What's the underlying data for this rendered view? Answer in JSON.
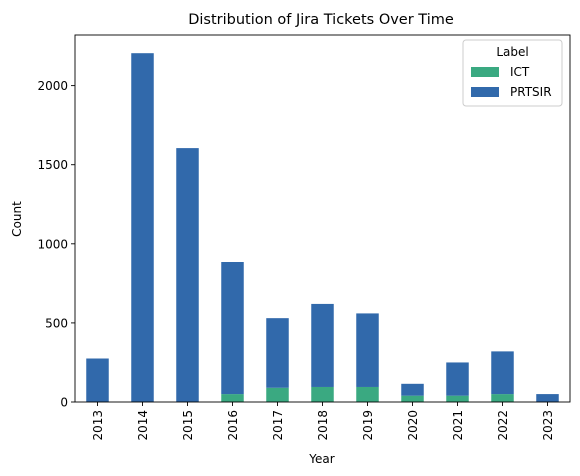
{
  "chart_data": {
    "type": "bar",
    "stacked": true,
    "title": "Distribution of Jira Tickets Over Time",
    "xlabel": "Year",
    "ylabel": "Count",
    "categories": [
      "2013",
      "2014",
      "2015",
      "2016",
      "2017",
      "2018",
      "2019",
      "2020",
      "2021",
      "2022",
      "2023"
    ],
    "series": [
      {
        "name": "ICT",
        "color": "#3aa981",
        "values": [
          0,
          0,
          0,
          50,
          90,
          95,
          95,
          40,
          40,
          50,
          0
        ]
      },
      {
        "name": "PRTSIR",
        "color": "#3169ab",
        "values": [
          275,
          2205,
          1605,
          835,
          440,
          525,
          465,
          75,
          210,
          270,
          50
        ]
      }
    ],
    "ylim": [
      0,
      2320
    ],
    "yticks": [
      0,
      500,
      1000,
      1500,
      2000
    ],
    "grid": false,
    "legend": {
      "title": "Label",
      "position": "top-right"
    }
  }
}
